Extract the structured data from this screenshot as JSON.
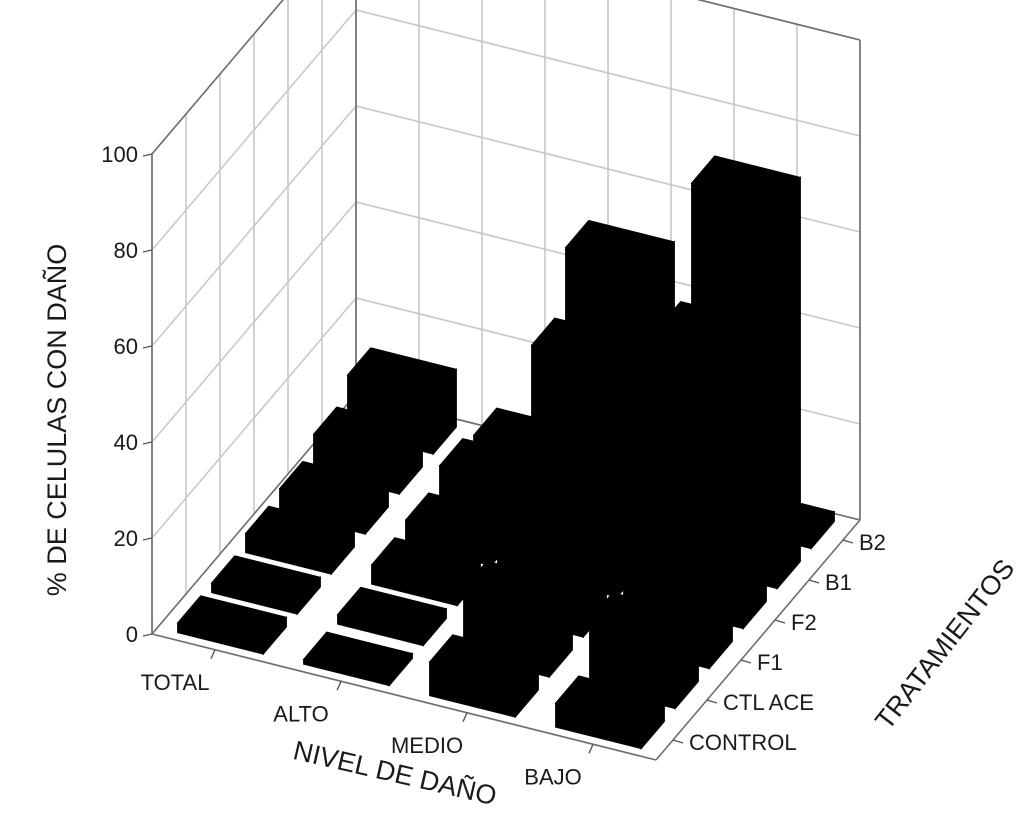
{
  "chart_data": {
    "type": "bar3d",
    "title": "",
    "ylabel": "% DE CELULAS CON DAÑO",
    "xlabel": "NIVEL DE DAÑO",
    "zlabel": "TRATAMIENTOS",
    "ylim": [
      0,
      100
    ],
    "yticks": [
      "0",
      "20",
      "40",
      "60",
      "80",
      "100"
    ],
    "categories": [
      "TOTAL",
      "ALTO",
      "MEDIO",
      "BAJO"
    ],
    "series": [
      {
        "name": "CONTROL",
        "values": [
          2,
          1,
          7,
          5
        ]
      },
      {
        "name": "CTL ACE",
        "values": [
          2,
          2,
          14,
          14
        ]
      },
      {
        "name": "F1",
        "values": [
          4,
          4,
          20,
          35
        ]
      },
      {
        "name": "F2",
        "values": [
          5,
          5,
          48,
          58
        ]
      },
      {
        "name": "B1",
        "values": [
          8,
          8,
          60,
          80
        ]
      },
      {
        "name": "B2",
        "values": [
          12,
          6,
          18,
          2
        ]
      }
    ],
    "bar_color": "#000000",
    "grid": true
  }
}
